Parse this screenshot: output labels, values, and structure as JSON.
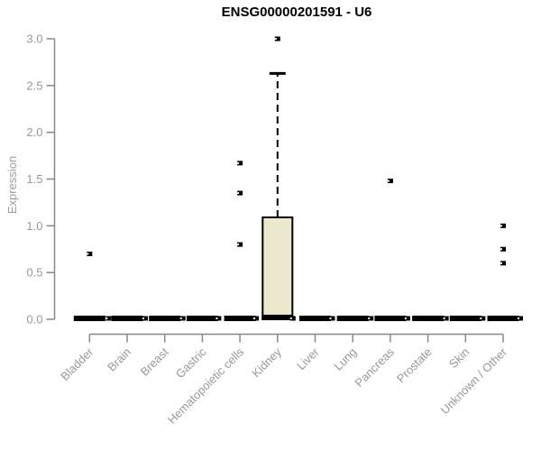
{
  "chart_data": {
    "type": "boxplot",
    "title": "ENSG00000201591 - U6",
    "ylabel": "Expression",
    "xlabel": "",
    "ylim": [
      0.0,
      3.0
    ],
    "ytick_labels": [
      "0.0",
      "0.5",
      "1.0",
      "1.5",
      "2.0",
      "2.5",
      "3.0"
    ],
    "grid": false,
    "legend": null,
    "colors": {
      "box_fill": "#ece8cd",
      "box_stroke": "#000000",
      "axis": "#888888",
      "tick_text": "#999999",
      "title_text": "#000000"
    },
    "categories": [
      "Bladder",
      "Brain",
      "Breast",
      "Gastric",
      "Hematopoietic cells",
      "Kidney",
      "Liver",
      "Lung",
      "Pancreas",
      "Prostate",
      "Skin",
      "Unknown / Other"
    ],
    "boxes": [
      {
        "category": "Bladder",
        "q1": 0,
        "median": 0.01,
        "q3": 0.02,
        "whisker_high": null,
        "outliers": [
          {
            "value": 0.7,
            "dx": 0
          },
          {
            "value": 0.01,
            "dx": 21
          }
        ]
      },
      {
        "category": "Brain",
        "q1": 0,
        "median": 0.01,
        "q3": 0.02,
        "whisker_high": null,
        "outliers": [
          {
            "value": 0.01,
            "dx": 20
          }
        ]
      },
      {
        "category": "Breast",
        "q1": 0,
        "median": 0.01,
        "q3": 0.02,
        "whisker_high": null,
        "outliers": [
          {
            "value": 0.01,
            "dx": 20
          }
        ]
      },
      {
        "category": "Gastric",
        "q1": 0,
        "median": 0.01,
        "q3": 0.02,
        "whisker_high": null,
        "outliers": [
          {
            "value": 0.01,
            "dx": 18
          }
        ]
      },
      {
        "category": "Hematopoietic cells",
        "q1": 0,
        "median": 0.01,
        "q3": 0.02,
        "whisker_high": null,
        "outliers": [
          {
            "value": 1.67,
            "dx": 0
          },
          {
            "value": 1.35,
            "dx": 0
          },
          {
            "value": 0.8,
            "dx": 0
          },
          {
            "value": 0.01,
            "dx": 18
          }
        ]
      },
      {
        "category": "Kidney",
        "q1": 0,
        "median": 0.02,
        "q3": 1.09,
        "whisker_high": 2.63,
        "outliers": [
          {
            "value": 3.0,
            "dx": 0
          },
          {
            "value": 0.01,
            "dx": 17
          }
        ]
      },
      {
        "category": "Liver",
        "q1": 0,
        "median": 0.01,
        "q3": 0.02,
        "whisker_high": null,
        "outliers": [
          {
            "value": 0.01,
            "dx": 19
          }
        ]
      },
      {
        "category": "Lung",
        "q1": 0,
        "median": 0.01,
        "q3": 0.02,
        "whisker_high": null,
        "outliers": [
          {
            "value": 0.01,
            "dx": 20
          }
        ]
      },
      {
        "category": "Pancreas",
        "q1": 0,
        "median": 0.01,
        "q3": 0.02,
        "whisker_high": null,
        "outliers": [
          {
            "value": 1.48,
            "dx": 0
          },
          {
            "value": 0.01,
            "dx": 19
          }
        ]
      },
      {
        "category": "Prostate",
        "q1": 0,
        "median": 0.01,
        "q3": 0.02,
        "whisker_high": null,
        "outliers": [
          {
            "value": 0.01,
            "dx": 20
          }
        ]
      },
      {
        "category": "Skin",
        "q1": 0,
        "median": 0.01,
        "q3": 0.02,
        "whisker_high": null,
        "outliers": [
          {
            "value": 0.01,
            "dx": 19
          }
        ]
      },
      {
        "category": "Unknown / Other",
        "q1": 0,
        "median": 0.01,
        "q3": 0.02,
        "whisker_high": null,
        "outliers": [
          {
            "value": 1.0,
            "dx": 0
          },
          {
            "value": 0.75,
            "dx": 0
          },
          {
            "value": 0.6,
            "dx": 0
          },
          {
            "value": 0.01,
            "dx": 19
          }
        ]
      }
    ]
  }
}
